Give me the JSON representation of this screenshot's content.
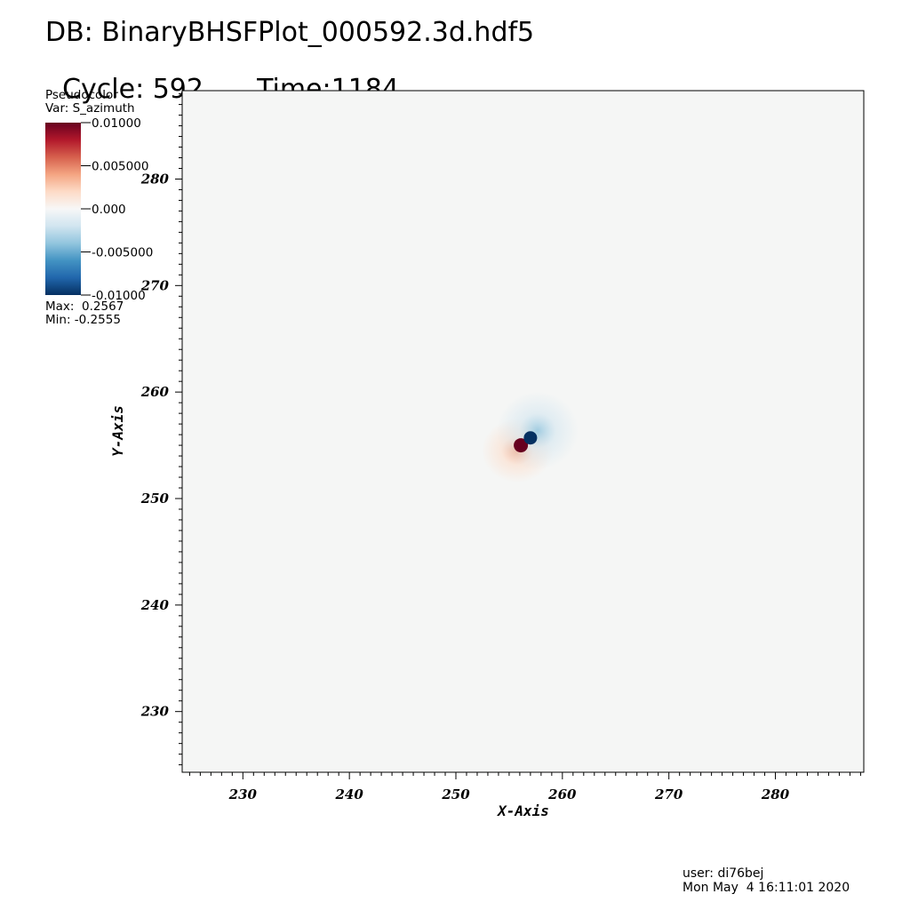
{
  "header": {
    "db_label": "DB: BinaryBHSFPlot_000592.3d.hdf5",
    "cycle_label": "Cycle: 592",
    "time_label": "Time:1184"
  },
  "legend": {
    "plot_type": "Pseudocolor",
    "var_label": "Var: S_azimuth",
    "max_label": "Max:  0.2567",
    "min_label": "Min: -0.2555",
    "colorbar_labels": [
      "0.01000",
      "0.005000",
      "0.000",
      "-0.005000",
      "-0.01000"
    ],
    "colorbar_stops": [
      "#67001f",
      "#b2182b",
      "#d6604d",
      "#f4a582",
      "#fddbc7",
      "#f7f7f7",
      "#d1e5f0",
      "#92c5de",
      "#4393c3",
      "#2166ac",
      "#053061"
    ]
  },
  "footer": {
    "user_label": "user: di76bej",
    "date_label": "Mon May  4 16:11:01 2020"
  },
  "chart_data": {
    "type": "heatmap",
    "variable": "S_azimuth",
    "xlabel": "X-Axis",
    "ylabel": "Y-Axis",
    "xlim": [
      224.3,
      288.3
    ],
    "ylim": [
      224.3,
      288.3
    ],
    "x_ticks": [
      230,
      240,
      250,
      260,
      270,
      280
    ],
    "y_ticks": [
      230,
      240,
      250,
      260,
      270,
      280
    ],
    "color_range": [
      -0.01,
      0.01
    ],
    "background_color": "#f5f6f5",
    "features": [
      {
        "name": "positive lobe",
        "x": 256.1,
        "y": 255.0,
        "value": 0.2567,
        "color": "#67001f"
      },
      {
        "name": "negative lobe",
        "x": 257.0,
        "y": 255.7,
        "value": -0.2555,
        "color": "#053061"
      }
    ]
  }
}
